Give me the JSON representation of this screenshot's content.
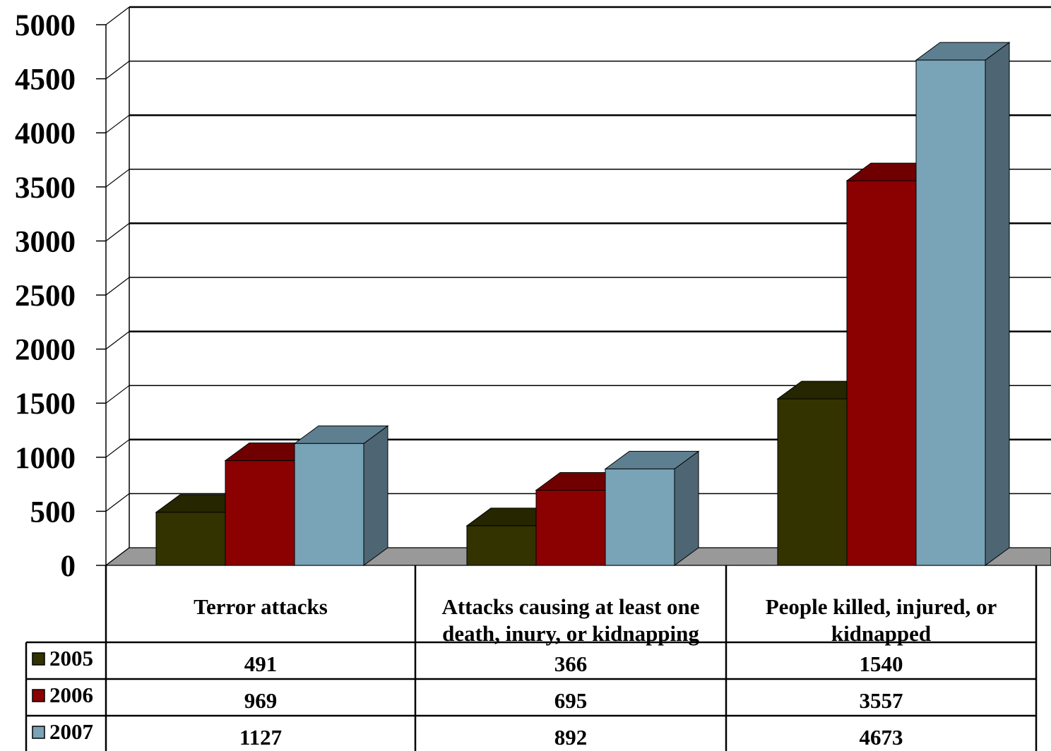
{
  "chart_data": {
    "type": "bar",
    "title": "",
    "xlabel": "",
    "ylabel": "",
    "ylim": [
      0,
      5000
    ],
    "yticks": [
      0,
      500,
      1000,
      1500,
      2000,
      2500,
      3000,
      3500,
      4000,
      4500,
      5000
    ],
    "grid": true,
    "style": "3d-clustered-column with data table",
    "categories": [
      "Terror attacks",
      "Attacks causing at least one death, inury, or kidnapping",
      "People killed, injured, or kidnapped"
    ],
    "category_label_lines": [
      [
        "Terror attacks"
      ],
      [
        "Attacks causing at least one",
        "death, inury, or kidnapping"
      ],
      [
        "People killed, injured, or",
        "kidnapped"
      ]
    ],
    "series": [
      {
        "name": "2005",
        "color": "#333300",
        "side": "#1f1f00",
        "top": "#262600",
        "values": [
          491,
          366,
          1540
        ]
      },
      {
        "name": "2006",
        "color": "#8b0000",
        "side": "#5c0000",
        "top": "#700000",
        "values": [
          969,
          695,
          3557
        ]
      },
      {
        "name": "2007",
        "color": "#79a3b6",
        "side": "#4e6673",
        "top": "#5e7f90",
        "values": [
          1127,
          892,
          4673
        ]
      }
    ]
  },
  "colors": {
    "floor": "#999999",
    "gridline": "#000000",
    "background": "#ffffff"
  }
}
